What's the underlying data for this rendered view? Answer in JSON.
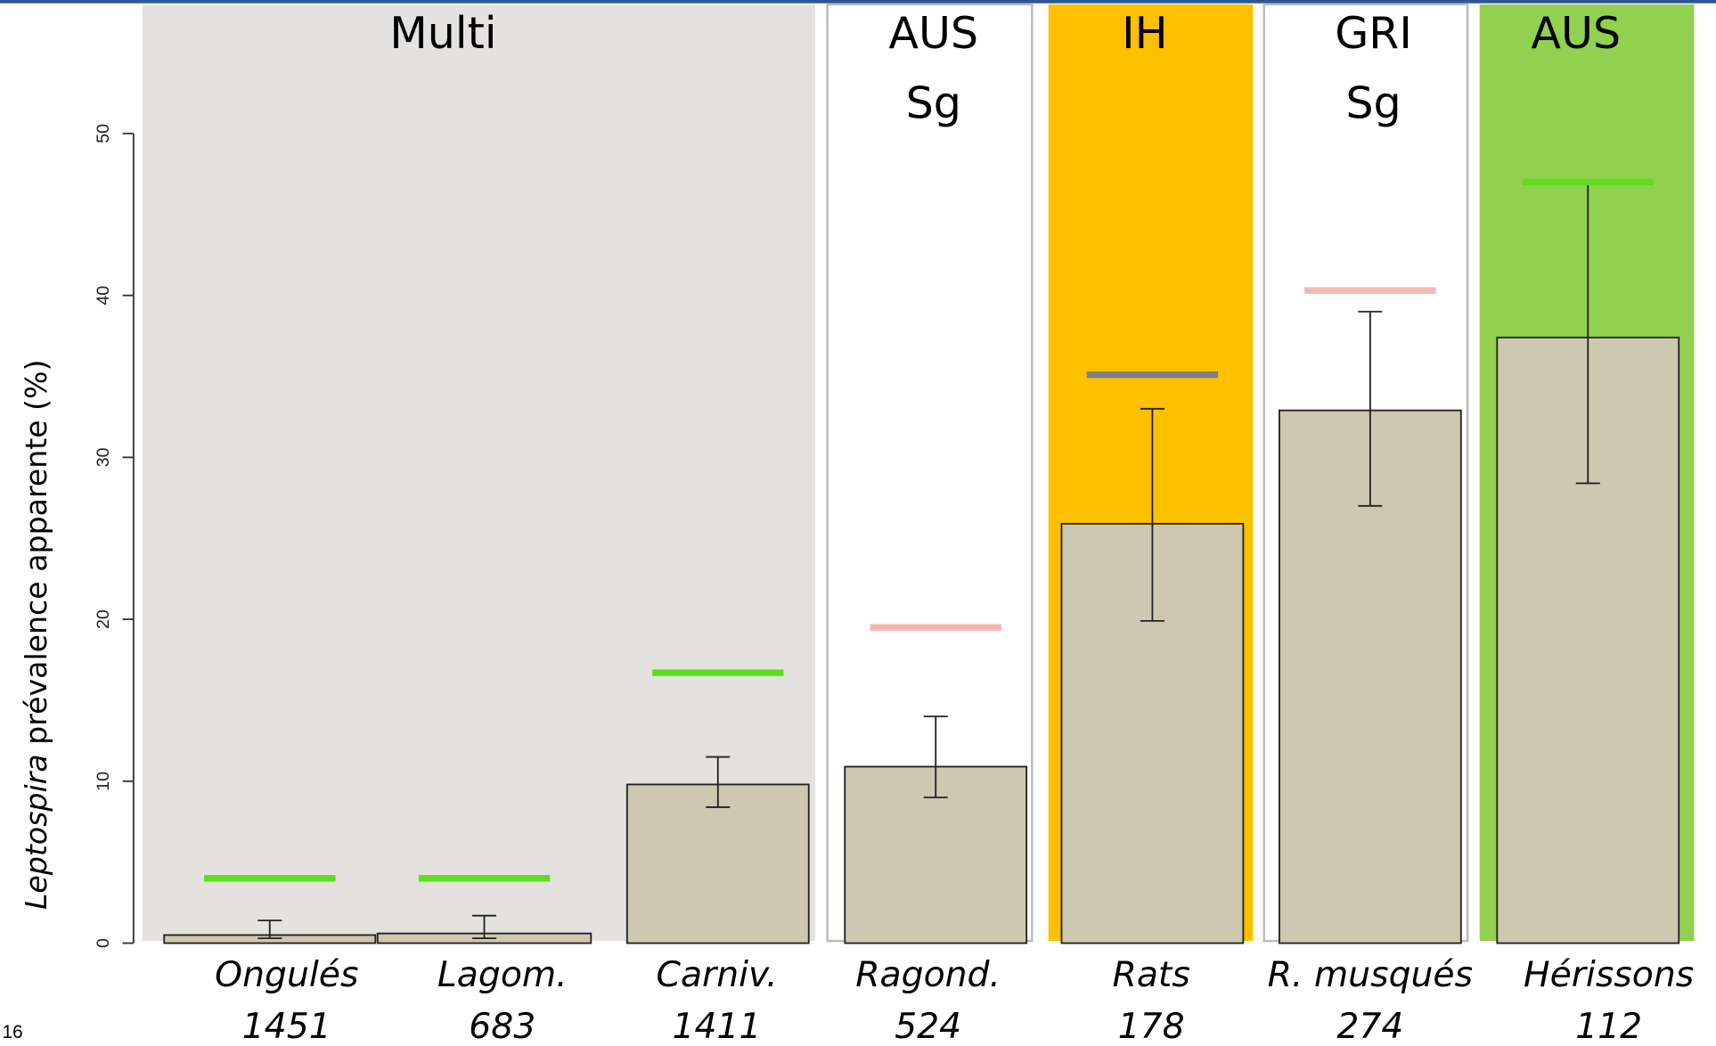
{
  "chart_data": {
    "type": "bar",
    "y_label_parts": [
      "Leptospira",
      " prévalence apparente (%)"
    ],
    "categories": [
      "Ongulés",
      "Lagom.",
      "Carniv.",
      "Ragond.",
      "Rats",
      "R. musqués",
      "Hérissons"
    ],
    "sample_sizes": [
      1451,
      683,
      1411,
      524,
      178,
      274,
      112
    ],
    "values": [
      0.5,
      0.6,
      9.8,
      10.9,
      25.9,
      32.9,
      37.4
    ],
    "error_low": [
      0.3,
      0.3,
      8.4,
      9.0,
      19.9,
      27.0,
      28.4
    ],
    "error_high": [
      1.4,
      1.7,
      11.5,
      14.0,
      33.0,
      39.0,
      47.1
    ],
    "bar_color": "#cec8b0",
    "reference_lines": {
      "values": [
        4.0,
        4.0,
        16.7,
        19.5,
        35.1,
        40.3,
        47.0
      ],
      "colors": [
        "#5fdc1e",
        "#5fdc1e",
        "#5fdc1e",
        "#f7b6b6",
        "#808080",
        "#f7b6b6",
        "#5fdc1e"
      ]
    },
    "groups": [
      {
        "label_lines": [
          "Multi"
        ],
        "background": "#e4e2df"
      },
      {
        "label_lines": [
          "AUS",
          "Sg"
        ],
        "background": "#ffffff"
      },
      {
        "label_lines": [
          "IH"
        ],
        "background": "#ffc000"
      },
      {
        "label_lines": [
          "GRI",
          "Sg"
        ],
        "background": "#ffffff"
      },
      {
        "label_lines": [
          "AUS"
        ],
        "background": "#92d050"
      }
    ],
    "ylim": [
      0,
      50
    ],
    "yticks": [
      0,
      10,
      20,
      30,
      40,
      50
    ],
    "page_number": "16"
  }
}
